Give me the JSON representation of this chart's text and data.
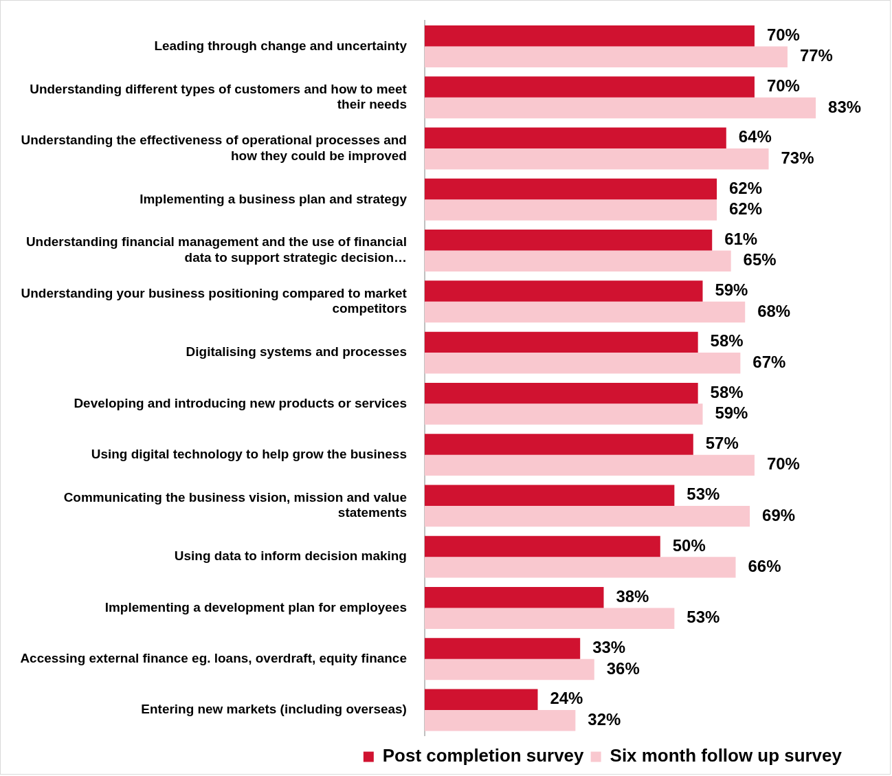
{
  "chart_data": {
    "type": "bar",
    "orientation": "horizontal",
    "categories": [
      "Leading through change and uncertainty",
      "Understanding different types of customers and how to meet their needs",
      "Understanding the effectiveness of operational processes and how they could be improved",
      "Implementing a business plan and strategy",
      "Understanding financial management and the use of financial data to support strategic decision…",
      "Understanding your business positioning compared to market competitors",
      "Digitalising systems and processes",
      "Developing and introducing new products or services",
      "Using digital technology to help grow the business",
      "Communicating the business vision, mission and value statements",
      "Using data to inform decision making",
      "Implementing a development plan for employees",
      "Accessing external finance eg. loans, overdraft, equity finance",
      "Entering new markets (including overseas)"
    ],
    "series": [
      {
        "name": "Post completion survey",
        "color": "#d01230",
        "values": [
          70,
          70,
          64,
          62,
          61,
          59,
          58,
          58,
          57,
          53,
          50,
          38,
          33,
          24
        ],
        "value_labels": [
          "70%",
          "70%",
          "64%",
          "62%",
          "61%",
          "59%",
          "58%",
          "58%",
          "57%",
          "53%",
          "50%",
          "38%",
          "33%",
          "24%"
        ]
      },
      {
        "name": "Six month follow up survey",
        "color": "#f9c8cf",
        "values": [
          77,
          83,
          73,
          62,
          65,
          68,
          67,
          59,
          70,
          69,
          66,
          53,
          36,
          32
        ],
        "value_labels": [
          "77%",
          "83%",
          "73%",
          "62%",
          "65%",
          "68%",
          "67%",
          "59%",
          "70%",
          "69%",
          "66%",
          "53%",
          "36%",
          "32%"
        ]
      }
    ],
    "tick_labels": "y",
    "grid": false,
    "legend": "bottom right"
  }
}
